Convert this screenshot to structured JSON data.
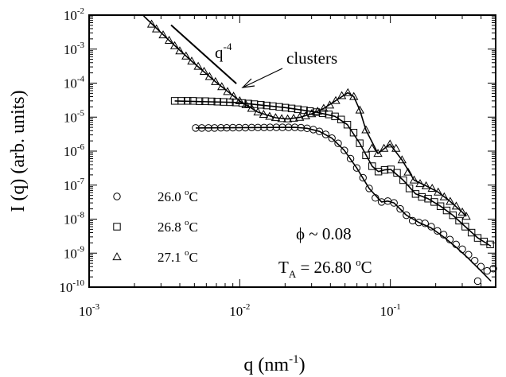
{
  "chart_data": {
    "type": "scatter",
    "title": "",
    "xlabel": {
      "base": "q (nm",
      "sup": "-1",
      "tail": ")"
    },
    "ylabel": "I (q) (arb. units)",
    "xscale": "log",
    "yscale": "log",
    "xlim": [
      0.001,
      0.5
    ],
    "ylim": [
      1e-10,
      0.01
    ],
    "x_ticks": [
      {
        "value": 0.001,
        "base": "10",
        "exp": "-3"
      },
      {
        "value": 0.01,
        "base": "10",
        "exp": "-2"
      },
      {
        "value": 0.1,
        "base": "10",
        "exp": "-1"
      }
    ],
    "y_ticks": [
      {
        "value": 0.01,
        "base": "10",
        "exp": "-2"
      },
      {
        "value": 0.001,
        "base": "10",
        "exp": "-3"
      },
      {
        "value": 0.0001,
        "base": "10",
        "exp": "-4"
      },
      {
        "value": 1e-05,
        "base": "10",
        "exp": "-5"
      },
      {
        "value": 1e-06,
        "base": "10",
        "exp": "-6"
      },
      {
        "value": 1e-07,
        "base": "10",
        "exp": "-7"
      },
      {
        "value": 1e-08,
        "base": "10",
        "exp": "-8"
      },
      {
        "value": 1e-09,
        "base": "10",
        "exp": "-9"
      },
      {
        "value": 1e-10,
        "base": "10",
        "exp": "-10"
      }
    ],
    "grid": false,
    "legend_position": "bottom-left",
    "series": [
      {
        "name": "26.0 °C",
        "name_base": "26.0 ",
        "name_sup": "o",
        "name_tail": "C",
        "marker": "circle",
        "points": [
          [
            0.0051,
            4.8e-06
          ],
          [
            0.0056,
            4.8e-06
          ],
          [
            0.0062,
            4.8e-06
          ],
          [
            0.0068,
            4.8e-06
          ],
          [
            0.0075,
            4.85e-06
          ],
          [
            0.0082,
            4.85e-06
          ],
          [
            0.009,
            4.9e-06
          ],
          [
            0.0099,
            4.9e-06
          ],
          [
            0.0109,
            4.9e-06
          ],
          [
            0.012,
            4.95e-06
          ],
          [
            0.0132,
            4.95e-06
          ],
          [
            0.0145,
            4.95e-06
          ],
          [
            0.0159,
            5e-06
          ],
          [
            0.0175,
            5e-06
          ],
          [
            0.0192,
            5e-06
          ],
          [
            0.0211,
            5e-06
          ],
          [
            0.0232,
            5e-06
          ],
          [
            0.0255,
            4.9e-06
          ],
          [
            0.028,
            4.7e-06
          ],
          [
            0.0308,
            4.3e-06
          ],
          [
            0.0338,
            3.8e-06
          ],
          [
            0.0372,
            3.1e-06
          ],
          [
            0.0409,
            2.4e-06
          ],
          [
            0.045,
            1.7e-06
          ],
          [
            0.0495,
            1.05e-06
          ],
          [
            0.0544,
            6e-07
          ],
          [
            0.0598,
            3.2e-07
          ],
          [
            0.0658,
            1.65e-07
          ],
          [
            0.0723,
            8e-08
          ],
          [
            0.0795,
            4.2e-08
          ],
          [
            0.0874,
            3.2e-08
          ],
          [
            0.0961,
            3.4e-08
          ],
          [
            0.1057,
            3e-08
          ],
          [
            0.1162,
            2e-08
          ],
          [
            0.1278,
            1.3e-08
          ],
          [
            0.1405,
            9e-09
          ],
          [
            0.1545,
            8e-09
          ],
          [
            0.1699,
            7.5e-09
          ],
          [
            0.1868,
            6e-09
          ],
          [
            0.2054,
            4.5e-09
          ],
          [
            0.2258,
            3.5e-09
          ],
          [
            0.2483,
            2.5e-09
          ],
          [
            0.273,
            1.8e-09
          ],
          [
            0.3002,
            1.3e-09
          ],
          [
            0.33,
            9e-10
          ],
          [
            0.363,
            6e-10
          ],
          [
            0.3991,
            4e-10
          ],
          [
            0.4388,
            3e-10
          ],
          [
            0.4825,
            3.5e-10
          ],
          [
            0.38,
            1.5e-10
          ]
        ]
      },
      {
        "name": "26.8 °C",
        "name_base": "26.8 ",
        "name_sup": "o",
        "name_tail": "C",
        "marker": "square",
        "points": [
          [
            0.0037,
            3e-05
          ],
          [
            0.0041,
            3e-05
          ],
          [
            0.0045,
            3e-05
          ],
          [
            0.0049,
            3e-05
          ],
          [
            0.0054,
            2.95e-05
          ],
          [
            0.0059,
            2.95e-05
          ],
          [
            0.0065,
            2.9e-05
          ],
          [
            0.0071,
            2.85e-05
          ],
          [
            0.0078,
            2.8e-05
          ],
          [
            0.0086,
            2.75e-05
          ],
          [
            0.0094,
            2.7e-05
          ],
          [
            0.0104,
            2.6e-05
          ],
          [
            0.0114,
            2.5e-05
          ],
          [
            0.0125,
            2.4e-05
          ],
          [
            0.0138,
            2.3e-05
          ],
          [
            0.0151,
            2.2e-05
          ],
          [
            0.0166,
            2.1e-05
          ],
          [
            0.0183,
            2e-05
          ],
          [
            0.0201,
            1.9e-05
          ],
          [
            0.0221,
            1.8e-05
          ],
          [
            0.0243,
            1.7e-05
          ],
          [
            0.0267,
            1.6e-05
          ],
          [
            0.0293,
            1.5e-05
          ],
          [
            0.0322,
            1.4e-05
          ],
          [
            0.0355,
            1.3e-05
          ],
          [
            0.039,
            1.2e-05
          ],
          [
            0.0429,
            1.05e-05
          ],
          [
            0.0471,
            8.5e-06
          ],
          [
            0.0518,
            6e-06
          ],
          [
            0.057,
            3.5e-06
          ],
          [
            0.0626,
            1.7e-06
          ],
          [
            0.0689,
            7.5e-07
          ],
          [
            0.0757,
            3.6e-07
          ],
          [
            0.0833,
            2.5e-07
          ],
          [
            0.0916,
            2.8e-07
          ],
          [
            0.1007,
            2.9e-07
          ],
          [
            0.1107,
            2.3e-07
          ],
          [
            0.1217,
            1.4e-07
          ],
          [
            0.1338,
            8e-08
          ],
          [
            0.1471,
            5.5e-08
          ],
          [
            0.1618,
            4.5e-08
          ],
          [
            0.1779,
            4e-08
          ],
          [
            0.1956,
            3.2e-08
          ],
          [
            0.2151,
            2.4e-08
          ],
          [
            0.2365,
            1.8e-08
          ],
          [
            0.26,
            1.3e-08
          ],
          [
            0.2859,
            9e-09
          ],
          [
            0.3144,
            6e-09
          ],
          [
            0.3457,
            4e-09
          ],
          [
            0.3801,
            2.8e-09
          ],
          [
            0.418,
            2.2e-09
          ],
          [
            0.4596,
            1.8e-09
          ]
        ]
      },
      {
        "name": "27.1 °C",
        "name_base": "27.1 ",
        "name_sup": "o",
        "name_tail": "C",
        "marker": "triangle",
        "points": [
          [
            0.0026,
            0.0054
          ],
          [
            0.0028,
            0.0039
          ],
          [
            0.0031,
            0.0026
          ],
          [
            0.0034,
            0.0018
          ],
          [
            0.0037,
            0.00125
          ],
          [
            0.004,
            0.00088
          ],
          [
            0.0044,
            0.00062
          ],
          [
            0.0048,
            0.00044
          ],
          [
            0.0053,
            0.00031
          ],
          [
            0.0058,
            0.00022
          ],
          [
            0.0063,
            0.000155
          ],
          [
            0.0069,
            0.00011
          ],
          [
            0.0076,
            7.8e-05
          ],
          [
            0.0083,
            5.6e-05
          ],
          [
            0.0091,
            4.1e-05
          ],
          [
            0.01,
            3e-05
          ],
          [
            0.011,
            2.3e-05
          ],
          [
            0.012,
            1.8e-05
          ],
          [
            0.0132,
            1.4e-05
          ],
          [
            0.0144,
            1.2e-05
          ],
          [
            0.0158,
            1.05e-05
          ],
          [
            0.0173,
            9.6e-06
          ],
          [
            0.019,
            9e-06
          ],
          [
            0.0208,
            8.8e-06
          ],
          [
            0.0228,
            9.2e-06
          ],
          [
            0.025,
            9.8e-06
          ],
          [
            0.0274,
            1.08e-05
          ],
          [
            0.03,
            1.25e-05
          ],
          [
            0.0329,
            1.48e-05
          ],
          [
            0.0361,
            1.8e-05
          ],
          [
            0.0396,
            2.25e-05
          ],
          [
            0.0434,
            3.05e-05
          ],
          [
            0.0476,
            4.25e-05
          ],
          [
            0.0522,
            5.2e-05
          ],
          [
            0.0572,
            4e-05
          ],
          [
            0.0627,
            1.6e-05
          ],
          [
            0.0688,
            4.2e-06
          ],
          [
            0.0754,
            1.2e-06
          ],
          [
            0.0827,
            8.5e-07
          ],
          [
            0.0907,
            1.2e-06
          ],
          [
            0.0994,
            1.6e-06
          ],
          [
            0.109,
            1.2e-06
          ],
          [
            0.1195,
            5.5e-07
          ],
          [
            0.131,
            2.4e-07
          ],
          [
            0.1437,
            1.4e-07
          ],
          [
            0.1575,
            1.1e-07
          ],
          [
            0.1727,
            9.5e-08
          ],
          [
            0.1894,
            8e-08
          ],
          [
            0.2077,
            6.2e-08
          ],
          [
            0.2277,
            4.5e-08
          ],
          [
            0.2497,
            3.3e-08
          ],
          [
            0.2738,
            2.4e-08
          ],
          [
            0.3002,
            1.6e-08
          ],
          [
            0.3191,
            1.2e-08
          ]
        ]
      }
    ],
    "fit_curves": [
      [
        [
          0.0051,
          4.8e-06
        ],
        [
          0.0232,
          5e-06
        ],
        [
          0.028,
          4.7e-06
        ],
        [
          0.0338,
          3.8e-06
        ],
        [
          0.0409,
          2.4e-06
        ],
        [
          0.0495,
          1.05e-06
        ],
        [
          0.0598,
          3.2e-07
        ],
        [
          0.0723,
          8e-08
        ],
        [
          0.0874,
          3.2e-08
        ],
        [
          0.0961,
          3.4e-08
        ],
        [
          0.1057,
          3e-08
        ],
        [
          0.1278,
          1.3e-08
        ],
        [
          0.1545,
          8e-09
        ],
        [
          0.1868,
          5.5e-09
        ],
        [
          0.2258,
          3e-09
        ],
        [
          0.273,
          1.5e-09
        ],
        [
          0.33,
          7e-10
        ],
        [
          0.3991,
          3e-10
        ],
        [
          0.4655,
          1.5e-10
        ]
      ],
      [
        [
          0.0037,
          3e-05
        ],
        [
          0.0094,
          2.7e-05
        ],
        [
          0.0201,
          1.9e-05
        ],
        [
          0.0322,
          1.4e-05
        ],
        [
          0.0429,
          1.05e-05
        ],
        [
          0.0518,
          6e-06
        ],
        [
          0.0626,
          1.7e-06
        ],
        [
          0.0757,
          3.6e-07
        ],
        [
          0.0833,
          2.5e-07
        ],
        [
          0.0916,
          2.8e-07
        ],
        [
          0.1007,
          2.9e-07
        ],
        [
          0.1217,
          1.4e-07
        ],
        [
          0.1471,
          5.5e-08
        ],
        [
          0.1779,
          4e-08
        ],
        [
          0.2151,
          2.4e-08
        ],
        [
          0.26,
          1.3e-08
        ],
        [
          0.3144,
          6e-09
        ],
        [
          0.3801,
          2.8e-09
        ],
        [
          0.4655,
          1.6e-09
        ]
      ],
      [
        [
          0.0023,
          0.0095
        ],
        [
          0.0034,
          0.0018
        ],
        [
          0.0048,
          0.00044
        ],
        [
          0.0069,
          0.00011
        ],
        [
          0.01,
          3e-05
        ],
        [
          0.0132,
          1.4e-05
        ],
        [
          0.0173,
          9.6e-06
        ],
        [
          0.0208,
          8.8e-06
        ],
        [
          0.025,
          9.8e-06
        ],
        [
          0.03,
          1.25e-05
        ],
        [
          0.0361,
          1.8e-05
        ],
        [
          0.0434,
          3.05e-05
        ],
        [
          0.0522,
          5.2e-05
        ],
        [
          0.0572,
          4e-05
        ],
        [
          0.0627,
          1.6e-05
        ],
        [
          0.0688,
          4.2e-06
        ],
        [
          0.0827,
          8.5e-07
        ],
        [
          0.0994,
          1.6e-06
        ],
        [
          0.1195,
          5.5e-07
        ],
        [
          0.1437,
          1.4e-07
        ],
        [
          0.1727,
          9.5e-08
        ],
        [
          0.2077,
          6.2e-08
        ],
        [
          0.2497,
          3.3e-08
        ],
        [
          0.3002,
          1.6e-08
        ],
        [
          0.3191,
          1.2e-08
        ]
      ]
    ],
    "slope_guide": {
      "label_base": "q",
      "label_exp": "-4",
      "x": [
        0.0035,
        0.0095
      ],
      "y": [
        0.0051,
        9.64e-05
      ]
    },
    "annotations": {
      "clusters": "clusters",
      "phi": "ϕ ~ 0.08",
      "ta_base": "T",
      "ta_sub": "A",
      "ta_rest": " = 26.80 ",
      "ta_sup": "o",
      "ta_tail": "C"
    }
  }
}
